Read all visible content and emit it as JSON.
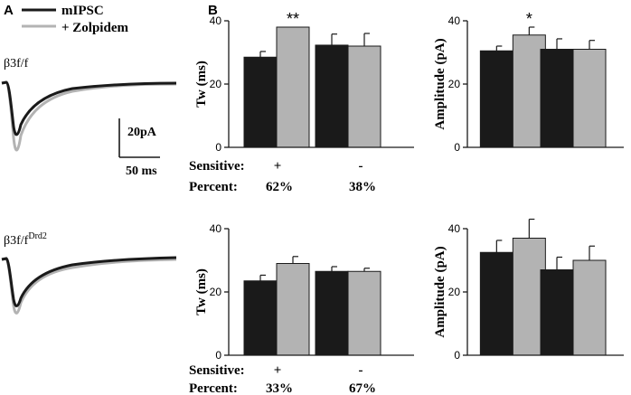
{
  "chart_data": {
    "type": "bar",
    "panel_a": {
      "label": "A",
      "legend": [
        {
          "name": "mIPSC",
          "color": "#1a1a1a"
        },
        {
          "name": "+ Zolpidem",
          "color": "#b3b3b3"
        }
      ],
      "trace_labels": {
        "top": "β3f/f",
        "bottom_base": "β3f/f",
        "bottom_sup": "Drd2"
      },
      "scalebar": {
        "amplitude": "20pA",
        "time": "50 ms"
      }
    },
    "panel_b": {
      "label": "B",
      "colors": {
        "control": "#1a1a1a",
        "zolpidem": "#b3b3b3"
      },
      "row_labels": {
        "sensitive": "Sensitive:",
        "percent": "Percent:"
      },
      "rows": [
        {
          "groups": [
            {
              "sensitive": "+",
              "percent": "62%"
            },
            {
              "sensitive": "-",
              "percent": "38%"
            }
          ],
          "charts": [
            {
              "ylabel": "Tw (ms)",
              "ylim": [
                0,
                40
              ],
              "yticks": [
                "0",
                "20",
                "40"
              ],
              "series": [
                {
                  "name": "mIPSC",
                  "values": [
                    28.5,
                    32.3
                  ],
                  "errors": [
                    1.8,
                    3.5
                  ]
                },
                {
                  "name": "+ Zolpidem",
                  "values": [
                    38.0,
                    32.0
                  ],
                  "errors": [
                    0,
                    4.0
                  ]
                }
              ],
              "annotations": [
                "**",
                ""
              ]
            },
            {
              "ylabel": "Amplitude (pA)",
              "ylim": [
                0,
                40
              ],
              "yticks": [
                "0",
                "20",
                "40"
              ],
              "series": [
                {
                  "name": "mIPSC",
                  "values": [
                    30.5,
                    31.0
                  ],
                  "errors": [
                    1.5,
                    3.3
                  ]
                },
                {
                  "name": "+ Zolpidem",
                  "values": [
                    35.5,
                    31.0
                  ],
                  "errors": [
                    2.5,
                    2.8
                  ]
                }
              ],
              "annotations": [
                "*",
                ""
              ]
            }
          ]
        },
        {
          "groups": [
            {
              "sensitive": "+",
              "percent": "33%"
            },
            {
              "sensitive": "-",
              "percent": "67%"
            }
          ],
          "charts": [
            {
              "ylabel": "Tw (ms)",
              "ylim": [
                0,
                40
              ],
              "yticks": [
                "0",
                "20",
                "40"
              ],
              "series": [
                {
                  "name": "mIPSC",
                  "values": [
                    23.5,
                    26.5
                  ],
                  "errors": [
                    1.8,
                    1.5
                  ]
                },
                {
                  "name": "+ Zolpidem",
                  "values": [
                    29.0,
                    26.5
                  ],
                  "errors": [
                    2.2,
                    1.0
                  ]
                }
              ],
              "annotations": [
                "",
                ""
              ]
            },
            {
              "ylabel": "Amplitude (pA)",
              "ylim": [
                0,
                40
              ],
              "yticks": [
                "0",
                "20",
                "40"
              ],
              "series": [
                {
                  "name": "mIPSC",
                  "values": [
                    32.5,
                    27.0
                  ],
                  "errors": [
                    3.8,
                    4.0
                  ]
                },
                {
                  "name": "+ Zolpidem",
                  "values": [
                    37.0,
                    30.0
                  ],
                  "errors": [
                    6.0,
                    4.5
                  ]
                }
              ],
              "annotations": [
                "",
                ""
              ]
            }
          ]
        }
      ]
    }
  }
}
